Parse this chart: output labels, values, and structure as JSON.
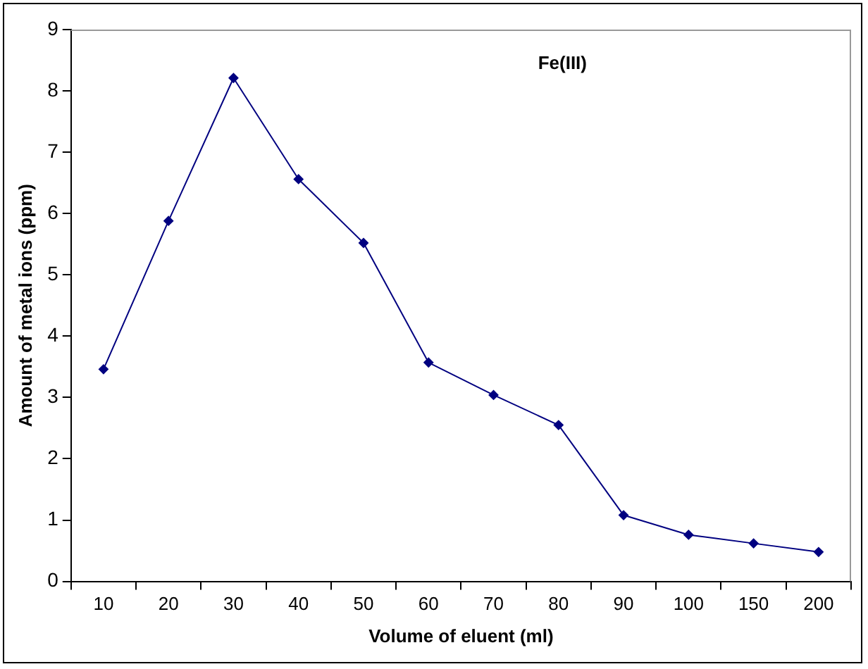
{
  "chart_data": {
    "type": "line",
    "xlabel": "Volume of eluent (ml)",
    "ylabel": "Amount of metal ions (ppm)",
    "annotations": [
      "Fe(III)"
    ],
    "categories": [
      "10",
      "20",
      "30",
      "40",
      "50",
      "60",
      "70",
      "80",
      "90",
      "100",
      "150",
      "200"
    ],
    "series": [
      {
        "color": "#000080",
        "values": [
          3.46,
          5.88,
          8.21,
          6.56,
          5.52,
          3.57,
          3.04,
          2.55,
          1.08,
          0.76,
          0.62,
          0.48
        ]
      }
    ],
    "ylim": [
      0,
      9
    ],
    "yticks": [
      0,
      1,
      2,
      3,
      4,
      5,
      6,
      7,
      8,
      9
    ],
    "grid": false,
    "legend": false,
    "marker": "diamond",
    "line_style": "solid"
  }
}
